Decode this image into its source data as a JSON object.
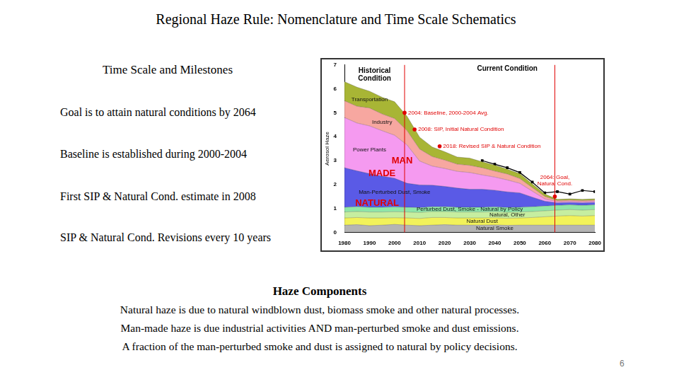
{
  "title": "Regional Haze Rule: Nomenclature and Time Scale Schematics",
  "left": {
    "heading": "Time Scale and Milestones",
    "items": [
      "Goal is to attain natural conditions by 2064",
      "Baseline is established during 2000-2004",
      "First SIP & Natural Cond. estimate in 2008",
      "SIP & Natural Cond. Revisions every 10 years"
    ]
  },
  "bottom": {
    "heading": "Haze Components",
    "lines": [
      "Natural haze is due to natural windblown dust, biomass smoke and other natural processes.",
      "Man-made haze is due industrial activities AND man-perturbed smoke and dust emissions.",
      "A fraction of the man-perturbed smoke and dust is assigned to natural by policy decisions."
    ]
  },
  "page_number": "6",
  "chart_data": {
    "type": "area",
    "stacked": true,
    "grid": false,
    "y_label": "Aerosol Haze",
    "x": [
      1980,
      1985,
      1990,
      1995,
      2000,
      2005,
      2010,
      2015,
      2020,
      2025,
      2030,
      2035,
      2040,
      2045,
      2050,
      2055,
      2060,
      2065,
      2070,
      2075,
      2080
    ],
    "xlim": [
      1980,
      2080
    ],
    "xticks": [
      1980,
      1990,
      2000,
      2010,
      2020,
      2030,
      2040,
      2050,
      2060,
      2070,
      2080
    ],
    "ylim": [
      0,
      7
    ],
    "yticks": [
      0,
      1,
      2,
      3,
      4,
      5,
      6,
      7
    ],
    "series": [
      {
        "name": "Natural Smoke",
        "color": "#b4b4b4",
        "label_x": 2040,
        "values": [
          0.3,
          0.32,
          0.28,
          0.3,
          0.33,
          0.3,
          0.28,
          0.3,
          0.32,
          0.3,
          0.3,
          0.3,
          0.31,
          0.29,
          0.3,
          0.3,
          0.3,
          0.3,
          0.3,
          0.3,
          0.3
        ]
      },
      {
        "name": "Natural Dust",
        "color": "#f2f25a",
        "label_x": 2035,
        "values": [
          0.3,
          0.3,
          0.32,
          0.3,
          0.28,
          0.3,
          0.3,
          0.32,
          0.3,
          0.3,
          0.3,
          0.3,
          0.3,
          0.3,
          0.3,
          0.32,
          0.35,
          0.38,
          0.4,
          0.38,
          0.4
        ]
      },
      {
        "name": "Natural, Other",
        "color": "#c6eea0",
        "label_x": 2045,
        "values": [
          0.25,
          0.25,
          0.25,
          0.25,
          0.25,
          0.25,
          0.25,
          0.25,
          0.25,
          0.25,
          0.25,
          0.25,
          0.25,
          0.25,
          0.25,
          0.25,
          0.25,
          0.25,
          0.25,
          0.25,
          0.25
        ]
      },
      {
        "name": "Perturbed Dust, Smoke - Natural by Policy",
        "color": "#8fe6a8",
        "label_x": 2030,
        "values": [
          0.2,
          0.2,
          0.2,
          0.2,
          0.2,
          0.2,
          0.2,
          0.2,
          0.2,
          0.2,
          0.2,
          0.2,
          0.2,
          0.2,
          0.2,
          0.2,
          0.2,
          0.2,
          0.2,
          0.2,
          0.2
        ]
      },
      {
        "name": "Man-Perturbed Dust, Smoke",
        "color": "#5a5ae6",
        "label_x": 2000,
        "values": [
          1.65,
          1.5,
          1.4,
          1.3,
          1.2,
          1.0,
          0.95,
          0.9,
          0.85,
          0.8,
          0.75,
          0.75,
          0.7,
          0.65,
          0.6,
          0.4,
          0.2,
          0.1,
          0.1,
          0.1,
          0.1
        ]
      },
      {
        "name": "Power Plants",
        "color": "#f59af0",
        "label_x": 1990,
        "values": [
          2.1,
          2.0,
          2.0,
          1.9,
          1.8,
          1.6,
          1.0,
          0.8,
          0.75,
          0.7,
          0.7,
          0.6,
          0.55,
          0.5,
          0.4,
          0.25,
          0.1,
          0.05,
          0.05,
          0.05,
          0.05
        ]
      },
      {
        "name": "Industry",
        "color": "#f7a7a0",
        "label_x": 1995,
        "values": [
          0.7,
          0.7,
          0.75,
          0.7,
          0.7,
          0.6,
          0.5,
          0.4,
          0.35,
          0.3,
          0.3,
          0.3,
          0.25,
          0.25,
          0.2,
          0.15,
          0.1,
          0.05,
          0.05,
          0.05,
          0.05
        ]
      },
      {
        "name": "Transportation",
        "color": "#a8b535",
        "label_x": 1990,
        "values": [
          0.8,
          0.8,
          0.7,
          0.7,
          0.7,
          0.6,
          0.5,
          0.4,
          0.35,
          0.3,
          0.3,
          0.25,
          0.25,
          0.2,
          0.2,
          0.15,
          0.1,
          0.05,
          0.05,
          0.05,
          0.05
        ]
      },
      {
        "type": "line",
        "color": "#000000",
        "marker": "square",
        "values": [
          null,
          null,
          null,
          null,
          null,
          null,
          null,
          null,
          null,
          null,
          null,
          3.0,
          2.85,
          2.7,
          2.5,
          2.1,
          1.65,
          1.7,
          1.6,
          1.75,
          1.7
        ]
      }
    ],
    "annotations": [
      {
        "text": [
          "Historical",
          "Condition"
        ],
        "x": 1992,
        "y": 6.75,
        "color": "#000000"
      },
      {
        "text": "Current Condition",
        "x": 2045,
        "y": 6.85,
        "color": "#000000"
      },
      {
        "text": "MAN",
        "x": 2003,
        "y": 3.0,
        "color": "#e00000"
      },
      {
        "text": "MADE",
        "x": 1995,
        "y": 2.45,
        "color": "#e00000"
      },
      {
        "text": "NATURAL",
        "x": 1993,
        "y": 1.2,
        "color": "#e00000"
      }
    ],
    "milestones": [
      {
        "x": 2004,
        "y": 5.0,
        "label": "2004: Baseline, 2000-2004 Avg.",
        "color": "#e00000"
      },
      {
        "x": 2008,
        "y": 4.3,
        "label": "2008: SIP, Initial Natural Condition",
        "color": "#e00000"
      },
      {
        "x": 2018,
        "y": 3.6,
        "label": "2018: Revised SIP & Natural Condition",
        "color": "#e00000"
      },
      {
        "x": 2064,
        "y": 1.5,
        "label": [
          "2064: Goal,",
          "Natural Cond."
        ],
        "color": "#e00000"
      }
    ],
    "vlines": [
      2004,
      2064
    ]
  }
}
